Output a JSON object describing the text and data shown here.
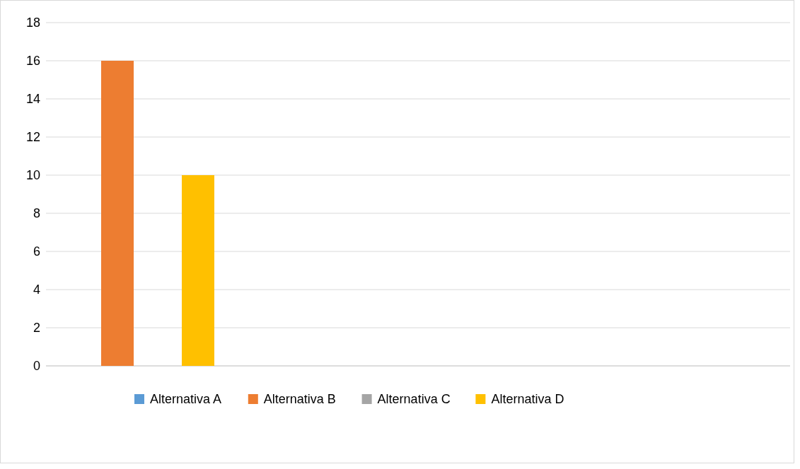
{
  "chart_data": {
    "type": "bar",
    "categories": [
      null
    ],
    "series": [
      {
        "name": "Alternativa A",
        "color": "#5b9bd5",
        "values": [
          0
        ]
      },
      {
        "name": "Alternativa B",
        "color": "#ed7d31",
        "values": [
          16
        ]
      },
      {
        "name": "Alternativa C",
        "color": "#a5a5a5",
        "values": [
          0
        ]
      },
      {
        "name": "Alternativa D",
        "color": "#ffc000",
        "values": [
          10
        ]
      }
    ],
    "ylim": [
      0,
      18
    ],
    "yticks": [
      0,
      2,
      4,
      6,
      8,
      10,
      12,
      14,
      16,
      18
    ],
    "grid": "y",
    "legend": "bottom"
  }
}
